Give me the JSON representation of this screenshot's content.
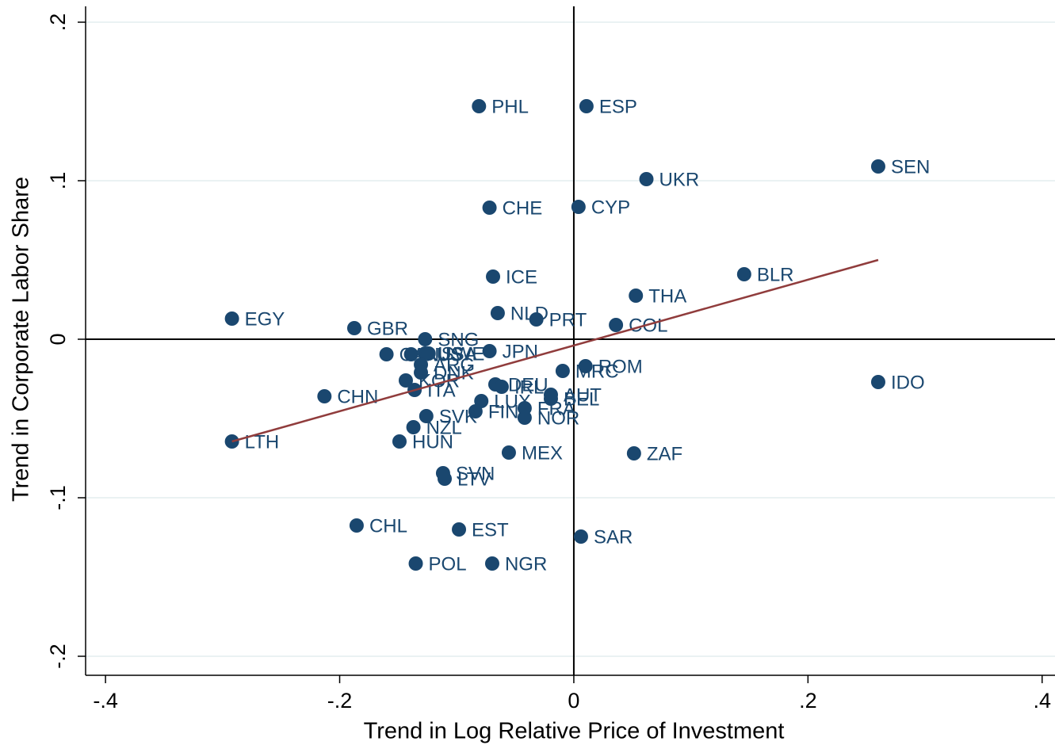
{
  "chart_data": {
    "type": "scatter",
    "x_label": "Trend in Log Relative Price of Investment",
    "y_label": "Trend in Corporate Labor Share",
    "labels": [
      "PHL",
      "ESP",
      "SEN",
      "UKR",
      "CHE",
      "CYP",
      "ICE",
      "BLR",
      "THA",
      "NLD",
      "PRT",
      "COL",
      "EGY",
      "GBR",
      "SNG",
      "JPN",
      "CAN",
      "AUS",
      "USA",
      "SWE",
      "ARG",
      "DNK",
      "KOR",
      "ITA",
      "CHN",
      "MRC",
      "ROM",
      "DEU",
      "IRL",
      "AUT",
      "BEL",
      "LUX",
      "FIN",
      "FRA",
      "NOR",
      "SVK",
      "NZL",
      "HUN",
      "LTH",
      "MEX",
      "ZAF",
      "SVN",
      "LTV",
      "CHL",
      "EST",
      "SAR",
      "POL",
      "NGR",
      "IDO"
    ],
    "x": [
      -0.081,
      0.0108,
      0.26,
      0.062,
      -0.072,
      0.004,
      -0.069,
      0.1455,
      0.053,
      -0.065,
      -0.032,
      0.036,
      -0.292,
      -0.1875,
      -0.127,
      -0.072,
      -0.16,
      -0.139,
      -0.127,
      -0.124,
      -0.1306,
      -0.1306,
      -0.1435,
      -0.136,
      -0.213,
      -0.0095,
      0.01,
      -0.067,
      -0.0616,
      -0.0196,
      -0.0196,
      -0.079,
      -0.084,
      -0.042,
      -0.042,
      -0.126,
      -0.137,
      -0.1489,
      -0.292,
      -0.0555,
      0.0514,
      -0.1117,
      -0.1103,
      -0.1855,
      -0.0981,
      0.0061,
      -0.135,
      -0.0697,
      0.26
    ],
    "y": [
      0.147,
      0.147,
      0.109,
      0.101,
      0.083,
      0.0835,
      0.0395,
      0.041,
      0.0275,
      0.0165,
      0.0125,
      0.009,
      0.013,
      0.007,
      0.0,
      -0.0075,
      -0.0095,
      -0.0095,
      -0.009,
      -0.009,
      -0.016,
      -0.021,
      -0.026,
      -0.032,
      -0.036,
      -0.02,
      -0.017,
      -0.0285,
      -0.03,
      -0.035,
      -0.0375,
      -0.039,
      -0.0455,
      -0.0435,
      -0.0495,
      -0.0485,
      -0.0555,
      -0.0645,
      -0.0645,
      -0.0715,
      -0.072,
      -0.0845,
      -0.088,
      -0.1175,
      -0.12,
      -0.1245,
      -0.1415,
      -0.1415,
      -0.027
    ],
    "color": "#1a476f",
    "fit_line": {
      "x": [
        -0.292,
        0.26
      ],
      "y": [
        -0.0645,
        0.05
      ],
      "color": "#903c3c"
    },
    "reference_lines": {
      "x": 0,
      "y": 0
    },
    "xlim": [
      -0.417,
      0.411
    ],
    "ylim": [
      -0.212,
      0.21
    ],
    "xticks": [
      {
        "value": -0.4,
        "label": "-.4"
      },
      {
        "value": -0.2,
        "label": "-.2"
      },
      0,
      {
        "value": 0.2,
        "label": ".2"
      },
      {
        "value": 0.4,
        "label": ".4"
      }
    ],
    "yticks": [
      {
        "value": -0.2,
        "label": "-.2"
      },
      {
        "value": -0.1,
        "label": "-.1"
      },
      0,
      {
        "value": 0.1,
        "label": ".1"
      },
      {
        "value": 0.2,
        "label": ".2"
      }
    ],
    "grid": true
  }
}
